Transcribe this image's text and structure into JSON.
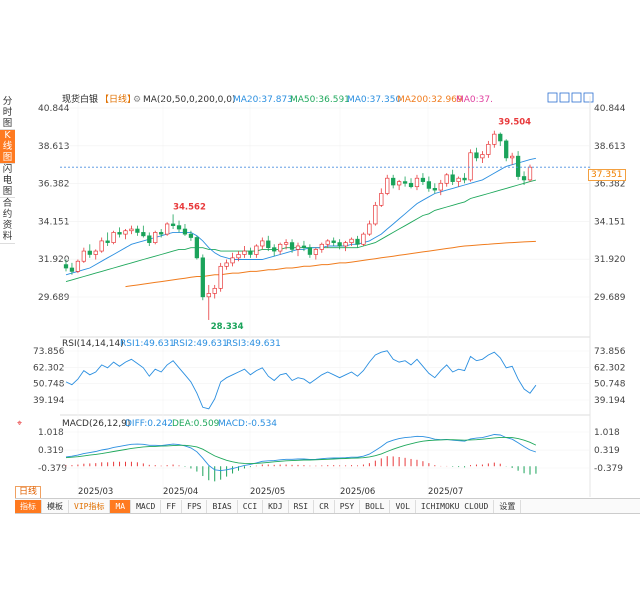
{
  "header": {
    "symbol": "现货白银",
    "period_tag": "【日线】",
    "ma_label": "MA(20,50,0,200,0,0)",
    "ma20": "MA20:37.873",
    "ma50": "MA50:36.591",
    "ma0": "MA0:37.350",
    "ma200": "MA200:32.969",
    "ma0b": "MA0:37."
  },
  "side_tabs": [
    "分时图",
    "K线图",
    "闪电图",
    "合约资料"
  ],
  "current_price_tag": "37.351",
  "rsi_header": {
    "label": "RSI(14,14,14)",
    "rsi1": "RSI1:49.631",
    "rsi2": "RSI2:49.631",
    "rsi3": "RSI3:49.631"
  },
  "macd_header": {
    "label": "MACD(26,12,9)",
    "diff": "DIFF:0.242",
    "dea": "DEA:0.509",
    "macd": "MACD:-0.534"
  },
  "bottom_period": "日线",
  "toolbar": [
    "指标",
    "模板",
    "VIP指标",
    "MA",
    "MACD",
    "FF",
    "FPS",
    "BIAS",
    "CCI",
    "KDJ",
    "RSI",
    "CR",
    "PSY",
    "BOLL",
    "VOL",
    "ICHIMOKU CLOUD",
    "设置"
  ],
  "colors": {
    "up": "#e8393b",
    "down": "#1aa35a",
    "ma20": "#2b8fe0",
    "ma50": "#1fa85c",
    "ma200": "#f07c1e",
    "accent": "#ff7a20",
    "dashed": "#4a8fe0"
  },
  "chart_data": [
    {
      "type": "candlestick",
      "title": "现货白银【日线】",
      "ylim": [
        28.0,
        41.0
      ],
      "yticks": [
        "40.844",
        "38.613",
        "36.382",
        "34.151",
        "31.920",
        "29.689"
      ],
      "xlabels": [
        "2025/03",
        "2025/04",
        "2025/05",
        "2025/06",
        "2025/07"
      ],
      "annotations": {
        "high_1": "34.562",
        "low": "28.334",
        "high_2": "39.504"
      },
      "candles": [
        [
          31.6,
          31.9,
          31.2,
          31.4
        ],
        [
          31.4,
          31.7,
          31.0,
          31.2
        ],
        [
          31.2,
          31.9,
          31.1,
          31.8
        ],
        [
          31.8,
          32.6,
          31.7,
          32.4
        ],
        [
          32.4,
          32.8,
          32.0,
          32.2
        ],
        [
          32.2,
          32.5,
          31.9,
          32.4
        ],
        [
          32.4,
          33.2,
          32.3,
          33.0
        ],
        [
          33.0,
          33.5,
          32.7,
          32.9
        ],
        [
          32.9,
          33.6,
          32.8,
          33.5
        ],
        [
          33.5,
          33.8,
          33.2,
          33.4
        ],
        [
          33.4,
          33.7,
          33.1,
          33.6
        ],
        [
          33.6,
          33.9,
          33.4,
          33.7
        ],
        [
          33.7,
          33.9,
          33.3,
          33.5
        ],
        [
          33.5,
          33.9,
          33.2,
          33.3
        ],
        [
          33.3,
          33.5,
          32.7,
          32.9
        ],
        [
          32.9,
          33.6,
          32.8,
          33.5
        ],
        [
          33.5,
          33.7,
          33.2,
          33.4
        ],
        [
          33.4,
          34.1,
          33.3,
          34.0
        ],
        [
          34.0,
          34.562,
          33.7,
          33.9
        ],
        [
          33.9,
          34.2,
          33.5,
          33.7
        ],
        [
          33.7,
          34.0,
          33.3,
          33.4
        ],
        [
          33.4,
          33.6,
          33.0,
          33.2
        ],
        [
          33.2,
          33.3,
          31.9,
          32.0
        ],
        [
          32.0,
          32.2,
          29.5,
          29.7
        ],
        [
          29.7,
          30.4,
          28.334,
          29.9
        ],
        [
          29.9,
          30.4,
          29.6,
          30.2
        ],
        [
          30.2,
          31.7,
          30.0,
          31.5
        ],
        [
          31.5,
          31.9,
          31.3,
          31.7
        ],
        [
          31.7,
          32.3,
          31.5,
          32.0
        ],
        [
          32.0,
          32.4,
          31.8,
          32.2
        ],
        [
          32.2,
          32.7,
          32.0,
          32.4
        ],
        [
          32.4,
          32.6,
          32.0,
          32.2
        ],
        [
          32.2,
          32.8,
          32.0,
          32.7
        ],
        [
          32.7,
          33.2,
          32.5,
          33.0
        ],
        [
          33.0,
          33.3,
          32.4,
          32.6
        ],
        [
          32.6,
          32.8,
          32.1,
          32.4
        ],
        [
          32.4,
          32.9,
          32.2,
          32.8
        ],
        [
          32.8,
          33.1,
          32.5,
          32.9
        ],
        [
          32.9,
          33.1,
          32.3,
          32.5
        ],
        [
          32.5,
          32.9,
          32.1,
          32.7
        ],
        [
          32.7,
          33.0,
          32.4,
          32.6
        ],
        [
          32.6,
          32.8,
          32.0,
          32.2
        ],
        [
          32.2,
          32.6,
          31.9,
          32.5
        ],
        [
          32.5,
          32.9,
          32.3,
          32.8
        ],
        [
          32.8,
          33.1,
          32.6,
          33.0
        ],
        [
          33.0,
          33.2,
          32.7,
          32.9
        ],
        [
          32.9,
          33.1,
          32.5,
          32.7
        ],
        [
          32.7,
          33.0,
          32.4,
          32.9
        ],
        [
          32.9,
          33.2,
          32.7,
          33.1
        ],
        [
          33.1,
          33.3,
          32.6,
          32.8
        ],
        [
          32.8,
          33.5,
          32.7,
          33.4
        ],
        [
          33.4,
          34.2,
          33.3,
          34.0
        ],
        [
          34.0,
          35.3,
          33.9,
          35.1
        ],
        [
          35.1,
          36.1,
          35.0,
          35.8
        ],
        [
          35.8,
          36.9,
          35.7,
          36.7
        ],
        [
          36.7,
          36.9,
          36.1,
          36.3
        ],
        [
          36.3,
          36.6,
          36.0,
          36.5
        ],
        [
          36.5,
          36.8,
          36.2,
          36.4
        ],
        [
          36.4,
          36.7,
          36.1,
          36.2
        ],
        [
          36.2,
          36.9,
          36.0,
          36.7
        ],
        [
          36.7,
          37.0,
          36.3,
          36.5
        ],
        [
          36.5,
          36.8,
          35.9,
          36.1
        ],
        [
          36.1,
          36.4,
          35.8,
          36.0
        ],
        [
          36.0,
          36.6,
          35.7,
          36.4
        ],
        [
          36.4,
          37.0,
          36.2,
          36.9
        ],
        [
          36.9,
          37.2,
          36.3,
          36.5
        ],
        [
          36.5,
          36.8,
          36.2,
          36.7
        ],
        [
          36.7,
          37.0,
          36.4,
          36.6
        ],
        [
          36.6,
          38.4,
          36.5,
          38.2
        ],
        [
          38.2,
          38.5,
          37.7,
          37.9
        ],
        [
          37.9,
          38.3,
          37.6,
          38.1
        ],
        [
          38.1,
          38.9,
          37.9,
          38.7
        ],
        [
          38.7,
          39.504,
          38.5,
          39.3
        ],
        [
          39.3,
          39.4,
          38.6,
          38.9
        ],
        [
          38.9,
          39.0,
          37.7,
          37.9
        ],
        [
          37.9,
          38.2,
          37.5,
          38.0
        ],
        [
          38.0,
          38.3,
          36.6,
          36.8
        ],
        [
          36.8,
          37.1,
          36.3,
          36.6
        ],
        [
          36.6,
          37.5,
          36.5,
          37.351
        ]
      ],
      "ma20": [
        31.0,
        31.1,
        31.2,
        31.3,
        31.4,
        31.6,
        31.8,
        32.0,
        32.2,
        32.4,
        32.6,
        32.8,
        32.9,
        33.0,
        33.1,
        33.2,
        33.3,
        33.4,
        33.5,
        33.5,
        33.5,
        33.5,
        33.3,
        33.0,
        32.6,
        32.3,
        32.1,
        32.0,
        31.9,
        31.9,
        31.9,
        31.9,
        31.9,
        31.9,
        32.0,
        32.1,
        32.2,
        32.3,
        32.4,
        32.5,
        32.5,
        32.6,
        32.6,
        32.6,
        32.7,
        32.7,
        32.7,
        32.7,
        32.8,
        32.8,
        32.9,
        33.0,
        33.2,
        33.4,
        33.7,
        34.0,
        34.3,
        34.6,
        34.9,
        35.2,
        35.4,
        35.6,
        35.8,
        35.9,
        36.0,
        36.1,
        36.2,
        36.3,
        36.4,
        36.5,
        36.6,
        36.8,
        37.0,
        37.2,
        37.4,
        37.5,
        37.6,
        37.7,
        37.8,
        37.873
      ],
      "ma50": [
        30.6,
        30.7,
        30.8,
        30.9,
        31.0,
        31.1,
        31.2,
        31.3,
        31.4,
        31.5,
        31.6,
        31.7,
        31.8,
        31.9,
        32.0,
        32.1,
        32.2,
        32.3,
        32.4,
        32.5,
        32.5,
        32.6,
        32.6,
        32.6,
        32.5,
        32.5,
        32.4,
        32.4,
        32.4,
        32.4,
        32.4,
        32.4,
        32.4,
        32.5,
        32.5,
        32.5,
        32.5,
        32.6,
        32.6,
        32.6,
        32.6,
        32.6,
        32.6,
        32.6,
        32.6,
        32.6,
        32.6,
        32.6,
        32.6,
        32.6,
        32.7,
        32.8,
        32.9,
        33.1,
        33.3,
        33.5,
        33.7,
        33.9,
        34.1,
        34.3,
        34.5,
        34.6,
        34.8,
        34.9,
        35.0,
        35.1,
        35.2,
        35.3,
        35.5,
        35.6,
        35.7,
        35.8,
        35.9,
        36.0,
        36.1,
        36.2,
        36.3,
        36.4,
        36.5,
        36.591
      ],
      "ma200": [
        null,
        null,
        null,
        null,
        null,
        null,
        null,
        null,
        null,
        null,
        30.3,
        30.35,
        30.4,
        30.45,
        30.5,
        30.55,
        30.6,
        30.65,
        30.7,
        30.75,
        30.8,
        30.85,
        30.9,
        30.9,
        30.95,
        31.0,
        31.0,
        31.05,
        31.1,
        31.1,
        31.15,
        31.2,
        31.2,
        31.25,
        31.3,
        31.3,
        31.35,
        31.4,
        31.4,
        31.45,
        31.5,
        31.5,
        31.55,
        31.6,
        31.6,
        31.65,
        31.7,
        31.7,
        31.75,
        31.8,
        31.85,
        31.9,
        31.95,
        32.0,
        32.05,
        32.1,
        32.15,
        32.2,
        32.25,
        32.3,
        32.35,
        32.4,
        32.45,
        32.5,
        32.55,
        32.6,
        32.65,
        32.7,
        32.72,
        32.75,
        32.78,
        32.8,
        32.83,
        32.85,
        32.88,
        32.9,
        32.92,
        32.94,
        32.96,
        32.969
      ]
    },
    {
      "type": "line",
      "title": "RSI(14,14,14)",
      "ylim": [
        35.0,
        78.0
      ],
      "yticks": [
        "73.856",
        "62.302",
        "50.748",
        "39.194"
      ],
      "series": [
        {
          "name": "RSI1",
          "values": [
            52,
            50,
            54,
            60,
            57,
            59,
            64,
            62,
            66,
            63,
            66,
            68,
            65,
            62,
            56,
            61,
            59,
            64,
            67,
            62,
            57,
            52,
            44,
            34,
            33,
            40,
            52,
            55,
            57,
            59,
            61,
            57,
            60,
            62,
            56,
            53,
            57,
            58,
            53,
            55,
            54,
            51,
            54,
            57,
            59,
            57,
            55,
            57,
            59,
            56,
            60,
            66,
            71,
            73,
            74,
            68,
            66,
            67,
            64,
            68,
            63,
            58,
            55,
            60,
            64,
            59,
            61,
            60,
            70,
            67,
            68,
            71,
            73,
            69,
            62,
            63,
            54,
            47,
            44,
            49.631
          ]
        }
      ]
    },
    {
      "type": "line",
      "title": "MACD(26,12,9)",
      "ylim": [
        -1.0,
        1.3
      ],
      "yticks": [
        "1.018",
        "0.319",
        "-0.379"
      ],
      "series": [
        {
          "name": "DIFF",
          "values": [
            0.05,
            0.08,
            0.12,
            0.18,
            0.22,
            0.26,
            0.32,
            0.36,
            0.42,
            0.46,
            0.5,
            0.54,
            0.55,
            0.54,
            0.5,
            0.5,
            0.49,
            0.52,
            0.55,
            0.53,
            0.48,
            0.4,
            0.25,
            0.0,
            -0.28,
            -0.45,
            -0.48,
            -0.45,
            -0.4,
            -0.34,
            -0.28,
            -0.24,
            -0.18,
            -0.12,
            -0.1,
            -0.09,
            -0.06,
            -0.04,
            -0.04,
            -0.03,
            -0.03,
            -0.05,
            -0.04,
            -0.02,
            0.0,
            0.01,
            0.01,
            0.02,
            0.04,
            0.04,
            0.08,
            0.16,
            0.3,
            0.45,
            0.62,
            0.7,
            0.76,
            0.8,
            0.82,
            0.85,
            0.84,
            0.8,
            0.74,
            0.72,
            0.73,
            0.7,
            0.68,
            0.66,
            0.75,
            0.78,
            0.8,
            0.86,
            0.92,
            0.9,
            0.8,
            0.74,
            0.6,
            0.45,
            0.32,
            0.242
          ]
        },
        {
          "name": "DEA",
          "values": [
            0.02,
            0.04,
            0.06,
            0.09,
            0.12,
            0.15,
            0.18,
            0.22,
            0.26,
            0.3,
            0.34,
            0.38,
            0.41,
            0.44,
            0.45,
            0.46,
            0.47,
            0.48,
            0.49,
            0.5,
            0.5,
            0.48,
            0.44,
            0.35,
            0.22,
            0.09,
            0.0,
            -0.08,
            -0.14,
            -0.18,
            -0.2,
            -0.21,
            -0.2,
            -0.18,
            -0.16,
            -0.14,
            -0.12,
            -0.1,
            -0.09,
            -0.08,
            -0.07,
            -0.07,
            -0.06,
            -0.05,
            -0.04,
            -0.03,
            -0.02,
            -0.01,
            0.0,
            0.01,
            0.02,
            0.05,
            0.1,
            0.17,
            0.26,
            0.35,
            0.43,
            0.5,
            0.56,
            0.62,
            0.66,
            0.69,
            0.7,
            0.71,
            0.72,
            0.72,
            0.71,
            0.7,
            0.71,
            0.72,
            0.74,
            0.76,
            0.79,
            0.81,
            0.81,
            0.8,
            0.76,
            0.7,
            0.62,
            0.509
          ]
        },
        {
          "name": "MACD",
          "values": [
            0.06,
            0.08,
            0.12,
            0.18,
            0.2,
            0.22,
            0.28,
            0.28,
            0.32,
            0.32,
            0.32,
            0.32,
            0.28,
            0.2,
            0.1,
            0.08,
            0.04,
            0.08,
            0.12,
            0.06,
            -0.04,
            -0.16,
            -0.38,
            -0.7,
            -1.0,
            -1.08,
            -0.96,
            -0.74,
            -0.52,
            -0.32,
            -0.16,
            -0.06,
            0.04,
            0.12,
            0.12,
            0.1,
            0.12,
            0.12,
            0.1,
            0.1,
            0.08,
            0.04,
            0.04,
            0.06,
            0.08,
            0.08,
            0.06,
            0.06,
            0.08,
            0.06,
            0.12,
            0.22,
            0.4,
            0.56,
            0.72,
            0.7,
            0.66,
            0.6,
            0.52,
            0.46,
            0.36,
            0.22,
            0.08,
            0.02,
            0.02,
            -0.04,
            -0.06,
            -0.08,
            0.08,
            0.12,
            0.12,
            0.2,
            0.26,
            0.18,
            -0.02,
            -0.12,
            -0.32,
            -0.5,
            -0.6,
            -0.534
          ]
        }
      ]
    }
  ]
}
